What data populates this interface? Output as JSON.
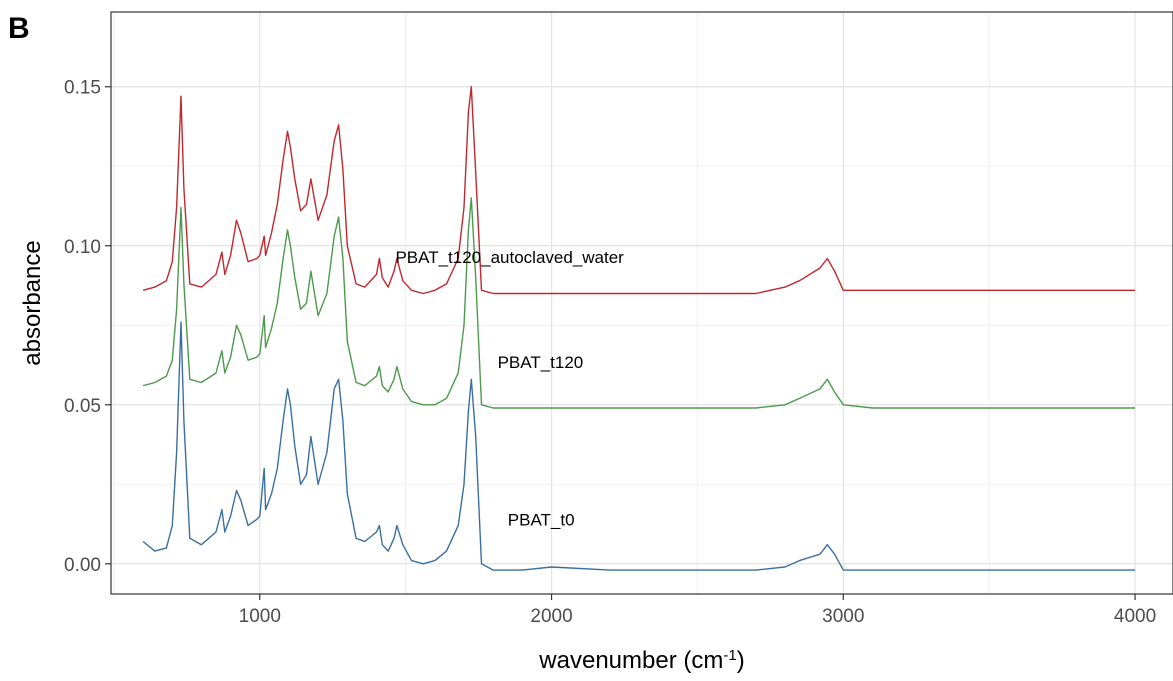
{
  "panel_label": "B",
  "chart_data": {
    "type": "line",
    "title": "",
    "xlabel": "wavenumber (cm",
    "xlabel_superscript": "-1",
    "xlabel_suffix": ")",
    "ylabel": "absorbance",
    "xlim": [
      490,
      4130
    ],
    "ylim": [
      -0.0095,
      0.1735
    ],
    "x_ticks": [
      1000,
      2000,
      3000,
      4000
    ],
    "x_tick_labels": [
      "1000",
      "2000",
      "3000",
      "4000"
    ],
    "y_ticks": [
      0.0,
      0.05,
      0.1,
      0.15
    ],
    "y_tick_labels": [
      "0.00",
      "0.05",
      "0.10",
      "0.15"
    ],
    "grid": true,
    "legend": "none",
    "series": [
      {
        "name": "PBAT_t0",
        "color": "#3a6fa0",
        "label_at": [
          1850,
          0.012
        ],
        "x": [
          600,
          640,
          680,
          700,
          715,
          730,
          740,
          760,
          800,
          850,
          870,
          880,
          900,
          920,
          935,
          960,
          990,
          1000,
          1015,
          1020,
          1040,
          1060,
          1080,
          1095,
          1105,
          1120,
          1140,
          1160,
          1175,
          1200,
          1230,
          1255,
          1270,
          1285,
          1300,
          1330,
          1360,
          1400,
          1410,
          1420,
          1440,
          1460,
          1470,
          1490,
          1520,
          1560,
          1600,
          1640,
          1680,
          1700,
          1715,
          1725,
          1740,
          1760,
          1800,
          1900,
          2000,
          2200,
          2500,
          2700,
          2800,
          2850,
          2920,
          2945,
          2970,
          3000,
          3100,
          3300,
          3500,
          3700,
          4000
        ],
        "y": [
          0.007,
          0.004,
          0.005,
          0.012,
          0.035,
          0.076,
          0.045,
          0.008,
          0.006,
          0.01,
          0.017,
          0.01,
          0.015,
          0.023,
          0.02,
          0.012,
          0.014,
          0.015,
          0.03,
          0.017,
          0.022,
          0.03,
          0.045,
          0.055,
          0.05,
          0.037,
          0.025,
          0.028,
          0.04,
          0.025,
          0.035,
          0.055,
          0.058,
          0.045,
          0.022,
          0.008,
          0.007,
          0.01,
          0.012,
          0.006,
          0.004,
          0.008,
          0.012,
          0.006,
          0.001,
          0.0,
          0.001,
          0.004,
          0.012,
          0.025,
          0.048,
          0.058,
          0.04,
          0.0,
          -0.002,
          -0.002,
          -0.001,
          -0.002,
          -0.002,
          -0.002,
          -0.001,
          0.001,
          0.003,
          0.006,
          0.003,
          -0.002,
          -0.002,
          -0.002,
          -0.002,
          -0.002,
          -0.002
        ]
      },
      {
        "name": "PBAT_t120",
        "color": "#4d9a4d",
        "label_at": [
          1815,
          0.0615
        ],
        "x": [
          600,
          640,
          680,
          700,
          715,
          730,
          740,
          760,
          800,
          850,
          870,
          880,
          900,
          920,
          935,
          960,
          990,
          1000,
          1015,
          1020,
          1040,
          1060,
          1080,
          1095,
          1105,
          1120,
          1140,
          1160,
          1175,
          1200,
          1230,
          1255,
          1270,
          1285,
          1300,
          1330,
          1360,
          1400,
          1410,
          1420,
          1440,
          1460,
          1470,
          1490,
          1520,
          1560,
          1600,
          1640,
          1680,
          1700,
          1715,
          1725,
          1740,
          1760,
          1800,
          1900,
          2000,
          2200,
          2500,
          2700,
          2800,
          2850,
          2920,
          2945,
          2970,
          3000,
          3100,
          3300,
          3500,
          3700,
          4000
        ],
        "y": [
          0.056,
          0.057,
          0.059,
          0.064,
          0.08,
          0.112,
          0.088,
          0.058,
          0.057,
          0.06,
          0.067,
          0.06,
          0.065,
          0.075,
          0.072,
          0.064,
          0.065,
          0.066,
          0.078,
          0.068,
          0.074,
          0.082,
          0.096,
          0.105,
          0.1,
          0.09,
          0.08,
          0.082,
          0.092,
          0.078,
          0.085,
          0.103,
          0.109,
          0.096,
          0.07,
          0.057,
          0.056,
          0.059,
          0.062,
          0.056,
          0.054,
          0.058,
          0.062,
          0.055,
          0.051,
          0.05,
          0.05,
          0.052,
          0.06,
          0.075,
          0.105,
          0.115,
          0.09,
          0.05,
          0.049,
          0.049,
          0.049,
          0.049,
          0.049,
          0.049,
          0.05,
          0.052,
          0.055,
          0.058,
          0.054,
          0.05,
          0.049,
          0.049,
          0.049,
          0.049,
          0.049
        ]
      },
      {
        "name": "PBAT_t120_autoclaved_water",
        "color": "#c0282f",
        "label_at": [
          1465,
          0.0945
        ],
        "x": [
          600,
          640,
          680,
          700,
          715,
          730,
          740,
          760,
          800,
          850,
          870,
          880,
          900,
          920,
          935,
          960,
          990,
          1000,
          1015,
          1020,
          1040,
          1060,
          1080,
          1095,
          1105,
          1120,
          1140,
          1160,
          1175,
          1200,
          1230,
          1255,
          1270,
          1285,
          1300,
          1330,
          1360,
          1400,
          1410,
          1420,
          1440,
          1460,
          1470,
          1490,
          1520,
          1560,
          1600,
          1640,
          1680,
          1700,
          1715,
          1725,
          1740,
          1760,
          1800,
          1900,
          2000,
          2200,
          2500,
          2700,
          2800,
          2850,
          2920,
          2945,
          2970,
          3000,
          3100,
          3300,
          3500,
          3700,
          4000
        ],
        "y": [
          0.086,
          0.087,
          0.089,
          0.095,
          0.112,
          0.147,
          0.118,
          0.088,
          0.087,
          0.091,
          0.098,
          0.091,
          0.097,
          0.108,
          0.104,
          0.095,
          0.096,
          0.097,
          0.103,
          0.097,
          0.104,
          0.113,
          0.127,
          0.136,
          0.131,
          0.121,
          0.111,
          0.113,
          0.121,
          0.108,
          0.116,
          0.133,
          0.138,
          0.124,
          0.1,
          0.088,
          0.087,
          0.091,
          0.096,
          0.09,
          0.087,
          0.092,
          0.096,
          0.089,
          0.086,
          0.085,
          0.086,
          0.088,
          0.096,
          0.112,
          0.142,
          0.15,
          0.123,
          0.086,
          0.085,
          0.085,
          0.085,
          0.085,
          0.085,
          0.085,
          0.087,
          0.089,
          0.093,
          0.096,
          0.092,
          0.086,
          0.086,
          0.086,
          0.086,
          0.086,
          0.086
        ]
      }
    ]
  }
}
